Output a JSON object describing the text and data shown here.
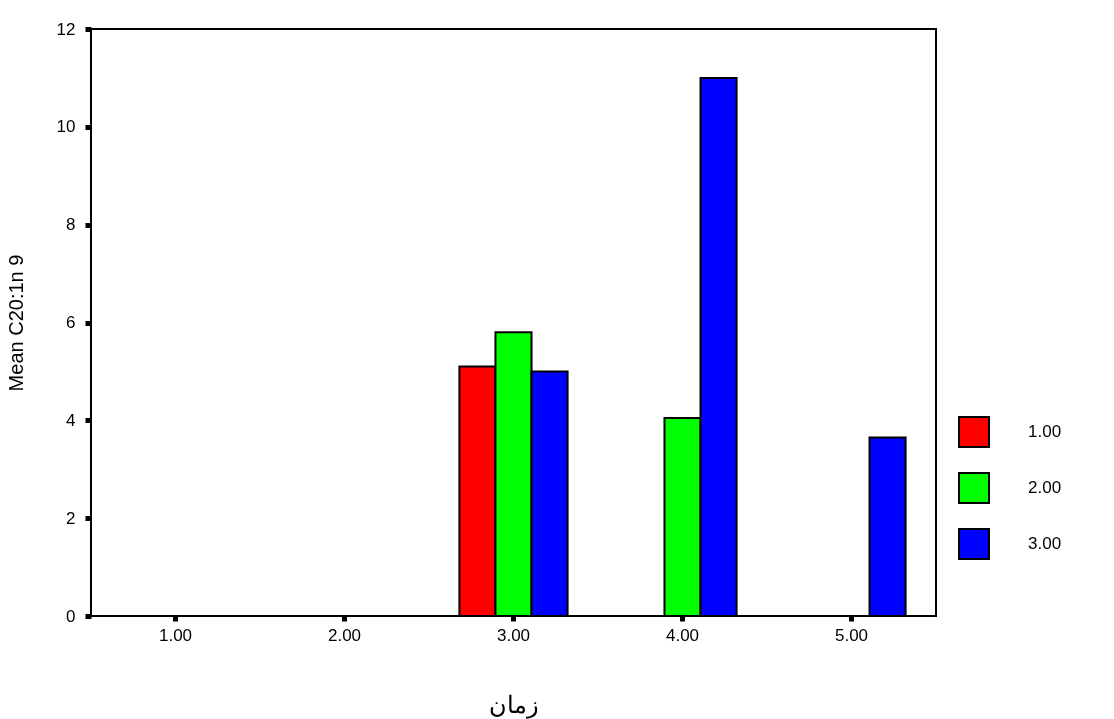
{
  "chart_data": {
    "type": "bar",
    "categories": [
      "1.00",
      "2.00",
      "3.00",
      "4.00",
      "5.00"
    ],
    "xlabel": "زمان",
    "ylabel": "Mean C20:1n 9",
    "series": [
      {
        "name": "1.00",
        "color": "#ff0000",
        "values": [
          null,
          null,
          5.1,
          null,
          null
        ]
      },
      {
        "name": "2.00",
        "color": "#00ff00",
        "values": [
          null,
          null,
          5.8,
          4.05,
          null
        ]
      },
      {
        "name": "3.00",
        "color": "#0000ff",
        "values": [
          null,
          null,
          5.0,
          11.0,
          3.65
        ]
      }
    ],
    "ylim": [
      0,
      12
    ],
    "yticks": [
      0,
      2,
      4,
      6,
      8,
      10,
      12
    ],
    "grid": false,
    "legend": "right"
  }
}
